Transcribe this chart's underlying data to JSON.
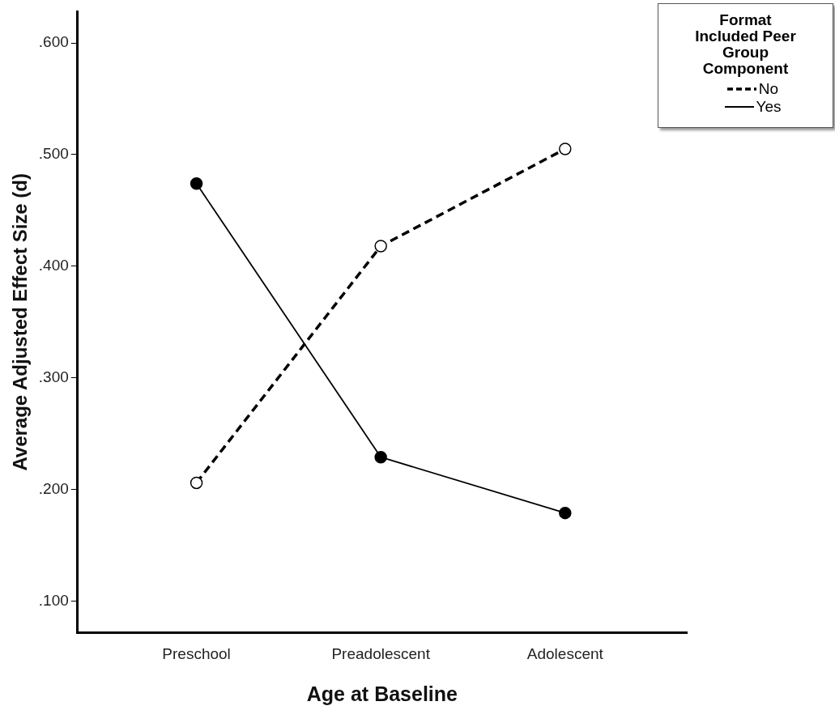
{
  "chart_data": {
    "type": "line",
    "xlabel": "Age at Baseline",
    "ylabel": "Average Adjusted Effect Size (d)",
    "legend_title": "Format Included Peer Group Component",
    "categories": [
      "Preschool",
      "Preadolescent",
      "Adolescent"
    ],
    "series": [
      {
        "name": "No",
        "color": "#000000",
        "values": [
          0.206,
          0.418,
          0.505
        ],
        "line_style": "dashed",
        "marker": "circle"
      },
      {
        "name": "Yes",
        "color": "#000000",
        "values": [
          0.474,
          0.229,
          0.179
        ],
        "line_style": "solid",
        "marker": "circle"
      }
    ],
    "ylim": [
      0.072,
      0.628
    ],
    "yticks": [
      {
        "value": 0.1,
        "label": ".100"
      },
      {
        "value": 0.2,
        "label": ".200"
      },
      {
        "value": 0.3,
        "label": ".300"
      },
      {
        "value": 0.4,
        "label": ".400"
      },
      {
        "value": 0.5,
        "label": ".500"
      },
      {
        "value": 0.6,
        "label": ".600"
      }
    ],
    "grid": false,
    "legend": "top right"
  }
}
